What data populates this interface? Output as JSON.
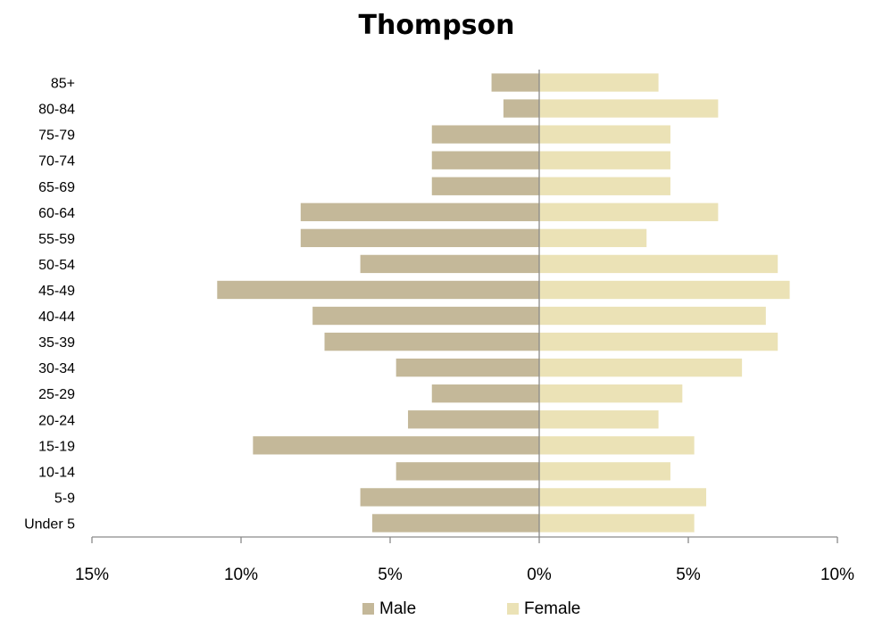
{
  "chart_data": {
    "type": "bar",
    "orientation": "horizontal-butterfly",
    "title": "Thompson",
    "categories": [
      "85+",
      "80-84",
      "75-79",
      "70-74",
      "65-69",
      "60-64",
      "55-59",
      "50-54",
      "45-49",
      "40-44",
      "35-39",
      "30-34",
      "25-29",
      "20-24",
      "15-19",
      "10-14",
      "5-9",
      "Under 5"
    ],
    "series": [
      {
        "name": "Male",
        "color": "#c4b899",
        "values": [
          1.6,
          1.2,
          3.6,
          3.6,
          3.6,
          8.0,
          8.0,
          6.0,
          10.8,
          7.6,
          7.2,
          4.8,
          3.6,
          4.4,
          9.6,
          4.8,
          6.0,
          5.6
        ]
      },
      {
        "name": "Female",
        "color": "#ebe2b6",
        "values": [
          4.0,
          6.0,
          4.4,
          4.4,
          4.4,
          6.0,
          3.6,
          8.0,
          8.4,
          7.6,
          8.0,
          6.8,
          4.8,
          4.0,
          5.2,
          4.4,
          5.6,
          5.2
        ]
      }
    ],
    "xlim": [
      -15,
      10
    ],
    "x_ticks": [
      -15,
      -10,
      -5,
      0,
      5,
      10
    ],
    "x_tick_labels": [
      "15%",
      "10%",
      "5%",
      "0%",
      "5%",
      "10%"
    ],
    "legend": "bottom-center",
    "grid": false
  }
}
